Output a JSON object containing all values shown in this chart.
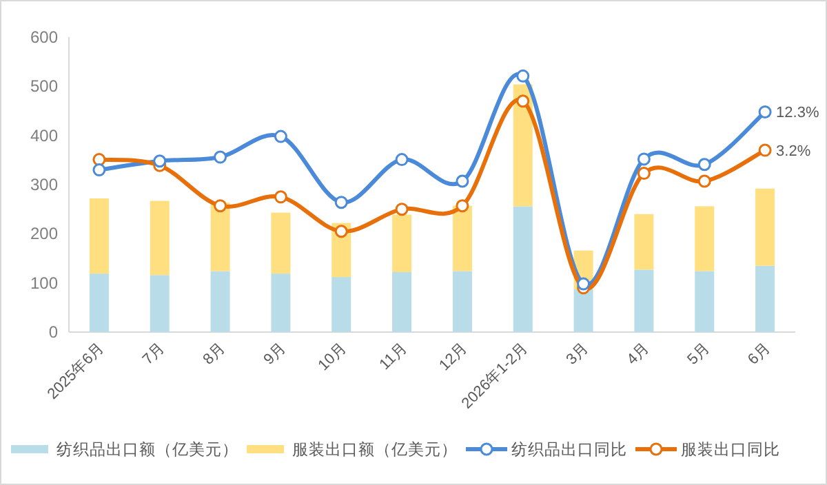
{
  "chart_data": {
    "type": "bar",
    "stacked": true,
    "categories": [
      "2025年6月",
      "7月",
      "8月",
      "9月",
      "10月",
      "11月",
      "12月",
      "2026年1-2月",
      "3月",
      "4月",
      "5月",
      "6月"
    ],
    "series": [
      {
        "name": "纺织品出口额（亿美元）",
        "color": "#b8dde8",
        "values": [
          119,
          116,
          124,
          119,
          112,
          122,
          124,
          256,
          87,
          127,
          124,
          135
        ]
      },
      {
        "name": "服装出口额（亿美元）",
        "color": "#ffdf80",
        "values": [
          153,
          151,
          139,
          124,
          110,
          117,
          133,
          248,
          79,
          113,
          132,
          157
        ]
      },
      {
        "name": "纺织品出口同比",
        "type": "line",
        "color": "#4a8ad8",
        "marker": "circle",
        "values": [
          330,
          348,
          356,
          398,
          264,
          351,
          307,
          521,
          98,
          352,
          341,
          448
        ]
      },
      {
        "name": "服装出口同比",
        "type": "line",
        "color": "#e8700a",
        "marker": "circle",
        "values": [
          351,
          339,
          257,
          275,
          205,
          250,
          257,
          470,
          90,
          323,
          307,
          370
        ]
      }
    ],
    "ylim": [
      0,
      600
    ],
    "yticks": [
      0,
      100,
      200,
      300,
      400,
      500,
      600
    ],
    "grid": false,
    "legend": "bottom",
    "annotations": [
      {
        "text": "12.3%",
        "x": "6月",
        "y": 448
      },
      {
        "text": "3.2%",
        "x": "6月",
        "y": 370
      }
    ]
  }
}
